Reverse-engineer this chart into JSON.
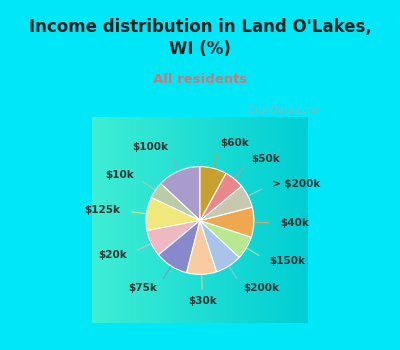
{
  "title": "Income distribution in Land O'Lakes,\nWI (%)",
  "subtitle": "All residents",
  "labels": [
    "$100k",
    "$10k",
    "$125k",
    "$20k",
    "$75k",
    "$30k",
    "$200k",
    "$150k",
    "$40k",
    "> $200k",
    "$50k",
    "$60k"
  ],
  "values": [
    13,
    5,
    10,
    8,
    10,
    9,
    8,
    7,
    9,
    7,
    6,
    8
  ],
  "colors": [
    "#a89ccc",
    "#b8cca8",
    "#f0e87a",
    "#f0b8c0",
    "#8888cc",
    "#f8cca0",
    "#a8c4e8",
    "#b8e890",
    "#f0a850",
    "#c8c8b0",
    "#e88888",
    "#c8a030"
  ],
  "background_cyan": "#00e8f8",
  "title_color": "#222222",
  "subtitle_color": "#cc7777",
  "label_color": "#333333",
  "watermark": "  City-Data.com",
  "title_fontsize": 12,
  "subtitle_fontsize": 9.5
}
